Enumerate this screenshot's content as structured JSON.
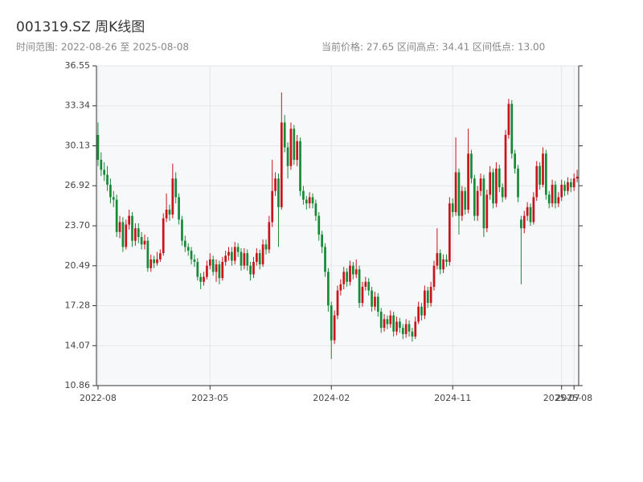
{
  "chart_data": {
    "type": "candlestick",
    "title": "001319.SZ 周K线图",
    "subtitle_left": "时间范围: 2022-08-26 至 2025-08-08",
    "subtitle_right": "当前价格: 27.65  区间高点: 34.41  区间低点: 13.00",
    "up_color": "#c9141c",
    "down_color": "#168a36",
    "grid": true,
    "ylim": [
      10.86,
      36.55
    ],
    "yticks": [
      10.86,
      14.07,
      17.28,
      20.49,
      {
        "value": 23.7,
        "label": "23.70"
      },
      26.92,
      30.13,
      33.34,
      36.55
    ],
    "xticks": [
      "2022-08",
      "2023-05",
      "2024-02",
      "2024-11",
      "2025-07",
      "2025-08"
    ],
    "x": [
      "2022-08",
      "2022-09",
      "2022-09",
      "2022-09",
      "2022-09",
      "2022-09",
      "2022-10",
      "2022-10",
      "2022-10",
      "2022-10",
      "2022-11",
      "2022-11",
      "2022-11",
      "2022-11",
      "2022-12",
      "2022-12",
      "2022-12",
      "2022-12",
      "2022-12",
      "2023-01",
      "2023-01",
      "2023-01",
      "2023-01",
      "2023-02",
      "2023-02",
      "2023-02",
      "2023-02",
      "2023-03",
      "2023-03",
      "2023-03",
      "2023-03",
      "2023-03",
      "2023-04",
      "2023-04",
      "2023-04",
      "2023-04",
      "2023-05",
      "2023-05",
      "2023-05",
      "2023-05",
      "2023-06",
      "2023-06",
      "2023-06",
      "2023-06",
      "2023-06",
      "2023-07",
      "2023-07",
      "2023-07",
      "2023-07",
      "2023-08",
      "2023-08",
      "2023-08",
      "2023-08",
      "2023-09",
      "2023-09",
      "2023-09",
      "2023-09",
      "2023-09",
      "2023-10",
      "2023-10",
      "2023-10",
      "2023-10",
      "2023-11",
      "2023-11",
      "2023-11",
      "2023-11",
      "2023-12",
      "2023-12",
      "2023-12",
      "2023-12",
      "2023-12",
      "2024-01",
      "2024-01",
      "2024-01",
      "2024-01",
      "2024-02",
      "2024-02",
      "2024-02",
      "2024-02",
      "2024-03",
      "2024-03",
      "2024-03",
      "2024-03",
      "2024-03",
      "2024-04",
      "2024-04",
      "2024-04",
      "2024-04",
      "2024-05",
      "2024-05",
      "2024-05",
      "2024-05",
      "2024-05",
      "2024-06",
      "2024-06",
      "2024-06",
      "2024-06",
      "2024-07",
      "2024-07",
      "2024-07",
      "2024-07",
      "2024-08",
      "2024-08",
      "2024-08",
      "2024-08",
      "2024-08",
      "2024-09",
      "2024-09",
      "2024-09",
      "2024-09",
      "2024-10",
      "2024-10",
      "2024-10",
      "2024-10",
      "2024-11",
      "2024-11",
      "2024-11",
      "2024-11",
      "2024-11",
      "2024-12",
      "2024-12",
      "2024-12",
      "2024-12",
      "2025-01",
      "2025-01",
      "2025-01",
      "2025-01",
      "2025-01",
      "2025-02",
      "2025-02",
      "2025-02",
      "2025-02",
      "2025-03",
      "2025-03",
      "2025-03",
      "2025-03",
      "2025-04",
      "2025-04",
      "2025-04",
      "2025-04",
      "2025-05",
      "2025-05",
      "2025-05",
      "2025-05",
      "2025-05",
      "2025-06",
      "2025-06",
      "2025-06",
      "2025-06",
      "2025-07",
      "2025-07",
      "2025-07",
      "2025-07",
      "2025-08",
      "2025-08"
    ],
    "open": [
      31.0,
      29.0,
      28.2,
      27.8,
      27.0,
      26.0,
      25.8,
      23.2,
      24.0,
      22.0,
      23.8,
      24.5,
      22.5,
      23.5,
      22.8,
      22.2,
      22.5,
      20.3,
      21.0,
      20.7,
      21.0,
      21.5,
      24.3,
      25.0,
      24.6,
      27.5,
      26.0,
      24.2,
      22.5,
      22.0,
      21.7,
      21.0,
      20.8,
      19.6,
      19.2,
      19.6,
      20.5,
      21.0,
      20.0,
      20.6,
      19.5,
      20.8,
      21.3,
      21.6,
      20.9,
      22.0,
      21.6,
      20.5,
      21.5,
      20.5,
      19.8,
      20.8,
      21.5,
      20.6,
      22.2,
      21.8,
      24.0,
      26.5,
      27.5,
      25.2,
      32.0,
      30.0,
      28.5,
      31.5,
      29.0,
      30.5,
      26.5,
      25.8,
      25.5,
      26.0,
      25.5,
      24.5,
      23.0,
      22.0,
      20.0,
      17.3,
      14.5,
      16.5,
      18.5,
      19.0,
      20.0,
      19.2,
      20.5,
      19.8,
      20.2,
      17.5,
      18.8,
      19.2,
      18.5,
      17.2,
      18.0,
      16.8,
      15.5,
      16.2,
      15.8,
      16.5,
      15.2,
      16.0,
      15.5,
      15.0,
      15.8,
      15.2,
      14.8,
      16.0,
      17.2,
      16.5,
      18.5,
      17.5,
      18.8,
      20.5,
      21.5,
      20.2,
      21.0,
      20.8,
      25.5,
      24.8,
      28.0,
      24.5,
      26.5,
      25.0,
      29.5,
      27.5,
      24.5,
      26.5,
      27.5,
      23.5,
      26.2,
      28.0,
      25.5,
      28.3,
      26.8,
      26.0,
      31.0,
      33.5,
      29.5,
      28.3,
      24.2,
      23.5,
      24.5,
      25.2,
      24.0,
      26.0,
      28.5,
      27.0,
      29.5,
      26.2,
      25.5,
      27.0,
      25.5,
      26.0,
      27.0,
      26.5,
      27.2,
      26.8,
      27.5
    ],
    "high": [
      32.0,
      29.6,
      28.8,
      28.5,
      27.5,
      26.5,
      26.2,
      24.5,
      24.4,
      24.2,
      25.0,
      24.8,
      23.9,
      23.9,
      23.2,
      23.0,
      22.8,
      21.4,
      21.3,
      21.6,
      21.8,
      24.7,
      26.3,
      25.4,
      28.7,
      28.0,
      26.3,
      24.5,
      22.9,
      22.3,
      22.0,
      21.4,
      21.1,
      19.9,
      20.0,
      20.9,
      21.5,
      21.3,
      21.0,
      20.9,
      21.2,
      21.7,
      22.0,
      22.0,
      22.4,
      22.3,
      21.9,
      21.9,
      21.8,
      20.8,
      21.2,
      21.9,
      21.8,
      22.6,
      22.6,
      24.5,
      29.0,
      28.0,
      27.9,
      34.41,
      32.6,
      30.4,
      32.0,
      31.8,
      31.0,
      30.8,
      26.9,
      26.1,
      26.4,
      26.3,
      25.8,
      24.8,
      23.3,
      22.3,
      20.3,
      17.6,
      16.9,
      18.9,
      19.4,
      20.4,
      20.3,
      20.9,
      20.8,
      21.0,
      20.5,
      19.2,
      19.6,
      19.5,
      18.8,
      18.4,
      18.3,
      17.1,
      16.6,
      16.5,
      16.9,
      16.8,
      16.4,
      16.3,
      15.8,
      16.2,
      16.1,
      15.5,
      16.4,
      17.6,
      17.5,
      18.9,
      18.8,
      19.2,
      20.9,
      23.5,
      21.8,
      21.4,
      21.4,
      26.0,
      25.9,
      30.8,
      28.3,
      26.9,
      26.8,
      31.5,
      29.8,
      27.8,
      26.9,
      27.9,
      27.8,
      26.6,
      28.5,
      28.3,
      28.8,
      28.6,
      27.1,
      31.4,
      33.9,
      33.8,
      29.8,
      28.6,
      24.5,
      24.9,
      25.6,
      25.5,
      26.4,
      28.9,
      28.8,
      30.0,
      29.8,
      26.5,
      27.4,
      27.3,
      26.4,
      27.4,
      27.3,
      27.6,
      27.5,
      27.9,
      28.2
    ],
    "low": [
      28.5,
      27.7,
      27.3,
      26.5,
      25.5,
      25.2,
      22.8,
      22.7,
      21.6,
      21.8,
      23.4,
      22.0,
      22.1,
      22.3,
      21.8,
      21.8,
      20.0,
      20.0,
      20.3,
      20.5,
      20.8,
      21.3,
      24.0,
      24.1,
      24.3,
      25.5,
      23.8,
      22.1,
      21.6,
      21.3,
      20.6,
      20.4,
      19.3,
      18.6,
      18.9,
      19.4,
      20.2,
      19.7,
      19.2,
      19.0,
      19.3,
      20.5,
      20.9,
      20.5,
      20.6,
      21.2,
      20.1,
      20.2,
      20.1,
      19.3,
      19.5,
      20.5,
      20.2,
      20.4,
      21.4,
      21.5,
      23.6,
      26.1,
      22.0,
      25.0,
      29.6,
      27.5,
      28.2,
      28.6,
      28.5,
      26.1,
      25.4,
      25.0,
      25.1,
      25.1,
      24.1,
      22.5,
      21.5,
      19.6,
      16.8,
      13.0,
      14.2,
      16.2,
      18.1,
      18.6,
      18.8,
      18.9,
      19.4,
      19.5,
      17.1,
      17.2,
      18.5,
      18.1,
      16.8,
      16.9,
      16.4,
      15.1,
      15.2,
      15.4,
      15.5,
      14.8,
      14.9,
      15.1,
      14.6,
      14.7,
      14.8,
      14.4,
      14.6,
      15.8,
      16.1,
      16.2,
      17.1,
      17.2,
      18.5,
      20.2,
      19.8,
      19.9,
      20.4,
      20.5,
      24.4,
      24.5,
      23.0,
      24.1,
      24.6,
      24.7,
      27.1,
      24.1,
      24.1,
      26.1,
      22.8,
      23.2,
      25.8,
      25.1,
      25.2,
      26.4,
      25.6,
      25.8,
      30.7,
      29.1,
      27.9,
      25.6,
      19.0,
      23.1,
      24.1,
      23.7,
      23.8,
      25.7,
      26.6,
      26.8,
      25.8,
      25.1,
      25.2,
      25.1,
      25.2,
      25.7,
      26.1,
      26.2,
      26.4,
      26.5,
      27.2
    ],
    "close": [
      29.0,
      28.2,
      27.8,
      27.0,
      26.0,
      25.8,
      23.2,
      24.0,
      22.0,
      23.8,
      24.5,
      22.5,
      23.5,
      22.8,
      22.2,
      22.5,
      20.3,
      21.0,
      20.7,
      21.0,
      21.5,
      24.3,
      25.0,
      24.6,
      27.5,
      26.0,
      24.2,
      22.5,
      22.0,
      21.7,
      21.0,
      20.8,
      19.6,
      19.2,
      19.6,
      20.5,
      21.0,
      20.0,
      20.6,
      19.5,
      20.8,
      21.3,
      21.6,
      20.9,
      22.0,
      21.6,
      20.5,
      21.5,
      20.5,
      19.8,
      20.8,
      21.5,
      20.6,
      22.2,
      21.8,
      24.0,
      26.5,
      27.5,
      25.2,
      32.0,
      30.0,
      28.5,
      31.5,
      29.0,
      30.5,
      26.5,
      25.8,
      25.5,
      26.0,
      25.5,
      24.5,
      23.0,
      22.0,
      20.0,
      17.3,
      14.5,
      16.5,
      18.5,
      19.0,
      20.0,
      19.2,
      20.5,
      19.8,
      20.2,
      17.5,
      18.8,
      19.2,
      18.5,
      17.2,
      18.0,
      16.8,
      15.5,
      16.2,
      15.8,
      16.5,
      15.2,
      16.0,
      15.5,
      15.0,
      15.8,
      15.2,
      14.8,
      16.0,
      17.2,
      16.5,
      18.5,
      17.5,
      18.8,
      20.5,
      21.5,
      20.2,
      21.0,
      20.8,
      25.5,
      24.8,
      28.0,
      24.5,
      26.5,
      25.0,
      29.5,
      27.5,
      24.5,
      26.5,
      27.5,
      23.5,
      26.2,
      28.0,
      25.5,
      28.3,
      26.8,
      26.0,
      31.0,
      33.5,
      29.5,
      28.3,
      26.0,
      23.5,
      24.5,
      25.2,
      24.0,
      26.0,
      28.5,
      27.0,
      29.5,
      26.2,
      25.5,
      27.0,
      25.5,
      26.0,
      27.0,
      26.5,
      27.2,
      26.8,
      27.5,
      27.65
    ]
  }
}
